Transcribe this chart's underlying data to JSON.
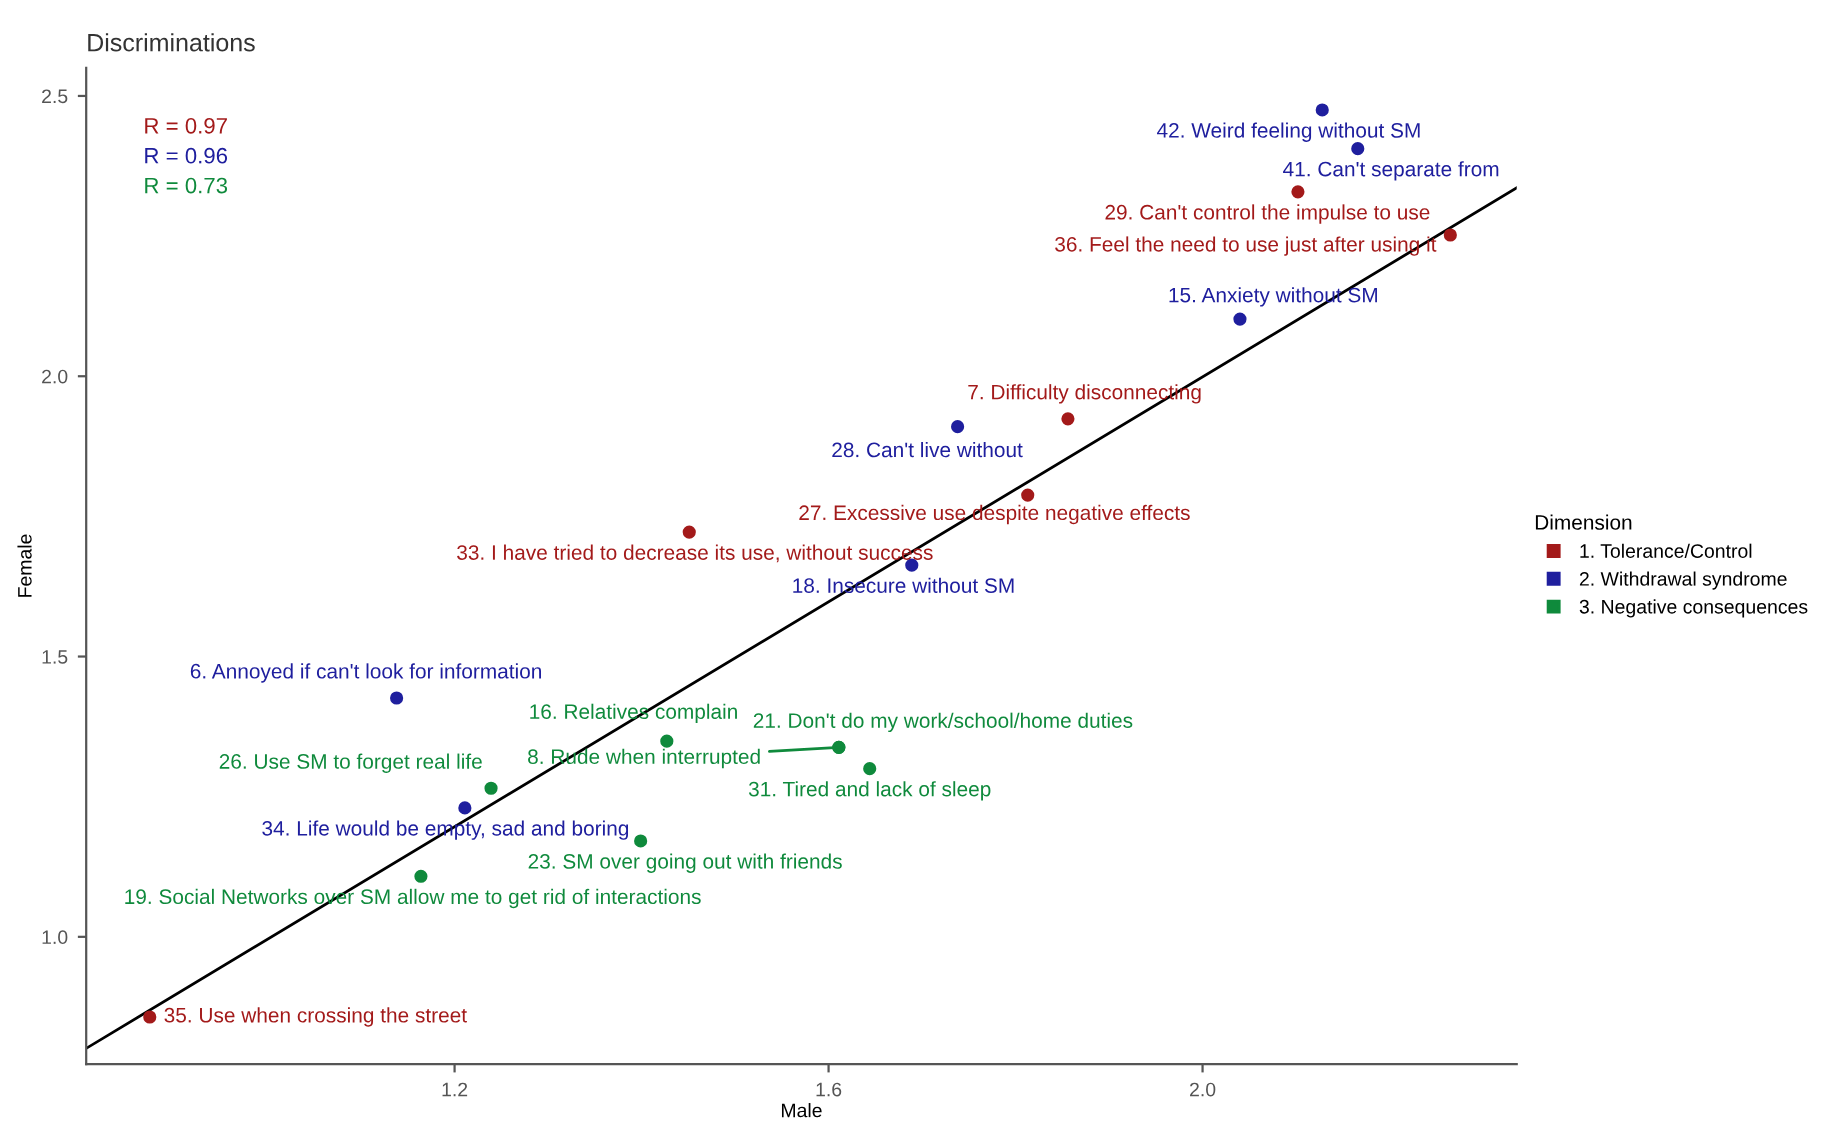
{
  "chart_data": {
    "type": "scatter",
    "title": "Discriminations",
    "xlabel": "Male",
    "ylabel": "Female",
    "legend_title": "Dimension",
    "legend": "right",
    "grid": false,
    "marker": "circle",
    "xlim": [
      0.806,
      2.336
    ],
    "ylim": [
      0.773,
      2.55
    ],
    "xticks": [
      1.2,
      1.6,
      {
        "value": 2,
        "label": "2.0"
      }
    ],
    "yticks": [
      {
        "value": 1,
        "label": "1.0"
      },
      1.5,
      {
        "value": 2,
        "label": "2.0"
      },
      2.5
    ],
    "annotations": [
      "R = 0.97",
      "R = 0.96",
      "R = 0.73",
      {
        "text": "29. Can't control the impulse to use",
        "x": 2.102,
        "y": 2.329
      },
      {
        "text": "36. Feel the need to use just after using it",
        "x": 2.265,
        "y": 2.252
      },
      {
        "text": "7. Difficulty disconnecting",
        "x": 1.856,
        "y": 1.924
      },
      {
        "text": "27. Excessive use despite negative effects",
        "x": 1.813,
        "y": 1.788
      },
      {
        "text": "33. I have tried to decrease its use, without success",
        "x": 1.451,
        "y": 1.722
      },
      {
        "text": "35. Use when crossing the street",
        "x": 0.874,
        "y": 0.857
      },
      {
        "text": "42. Weird feeling without SM",
        "x": 2.128,
        "y": 2.475
      },
      {
        "text": "41. Can't separate from",
        "x": 2.166,
        "y": 2.406
      },
      {
        "text": "15. Anxiety without SM",
        "x": 2.04,
        "y": 2.102
      },
      {
        "text": "28. Can't live without",
        "x": 1.738,
        "y": 1.91
      },
      {
        "text": "18. Insecure without SM",
        "x": 1.689,
        "y": 1.663
      },
      {
        "text": "6. Annoyed if can't look for information",
        "x": 1.138,
        "y": 1.426
      },
      {
        "text": "34. Life would be empty, sad and boring",
        "x": 1.211,
        "y": 1.23
      },
      {
        "text": "16. Relatives complain",
        "x": 1.427,
        "y": 1.349
      },
      {
        "text": "21. Don't do my work/school/home duties",
        "x": 1.611,
        "y": 1.338
      },
      {
        "text": "8. Rude when interrupted",
        "x": 1.611,
        "y": 1.338
      },
      {
        "text": "31. Tired and lack of sleep",
        "x": 1.644,
        "y": 1.3
      },
      {
        "text": "26. Use SM to forget real life",
        "x": 1.239,
        "y": 1.265
      },
      {
        "text": "23. SM over going out with friends",
        "x": 1.399,
        "y": 1.171
      },
      {
        "text": "19. Social Networks over SM allow me to get rid of interactions",
        "x": 1.164,
        "y": 1.108
      }
    ],
    "series": [
      {
        "name": "1. Tolerance/Control",
        "color": "#a31a1a",
        "x": [
          2.102,
          2.265,
          1.856,
          1.813,
          1.451,
          0.874
        ],
        "values": [
          2.329,
          2.252,
          1.924,
          1.788,
          1.722,
          0.857
        ]
      },
      {
        "name": "2. Withdrawal syndrome",
        "color": "#1f1f9e",
        "x": [
          2.128,
          2.166,
          2.04,
          1.738,
          1.689,
          1.138,
          1.211
        ],
        "values": [
          2.475,
          2.406,
          2.102,
          1.91,
          1.663,
          1.426,
          1.23
        ]
      },
      {
        "name": "3. Negative consequences",
        "color": "#0f8a3c",
        "x": [
          1.427,
          1.611,
          1.611,
          1.644,
          1.239,
          1.399,
          1.164
        ],
        "values": [
          1.349,
          1.338,
          1.338,
          1.3,
          1.265,
          1.171,
          1.108
        ]
      },
      {
        "type": "line",
        "marker": "none",
        "color": "#000000",
        "x": [
          0.806,
          2.336
        ],
        "values": [
          0.801,
          2.336
        ]
      }
    ]
  }
}
